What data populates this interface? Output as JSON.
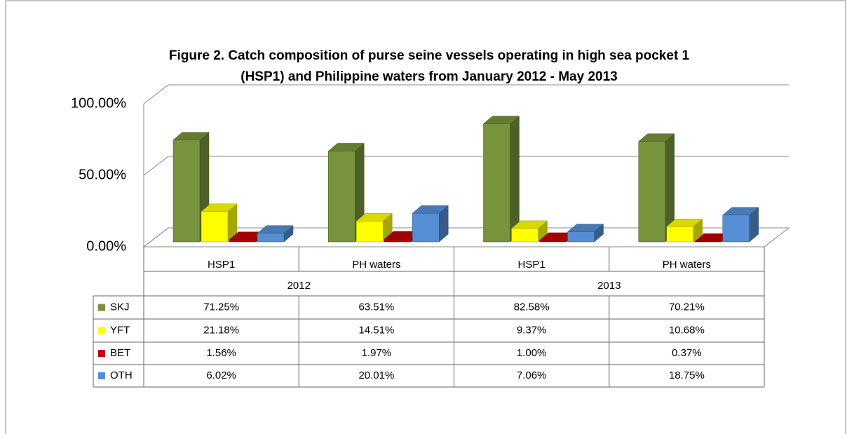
{
  "chart_data": {
    "type": "bar3d",
    "title": [
      "Figure 2. Catch composition of purse seine vessels operating in high sea pocket 1",
      "(HSP1) and Philippine waters from January 2012 - May 2013"
    ],
    "categories": [
      "HSP1",
      "PH waters",
      "HSP1",
      "PH waters"
    ],
    "category_groups": [
      "2012",
      "2013"
    ],
    "ylim": [
      0,
      100
    ],
    "yticks": [
      {
        "value": 0,
        "label": "0.00%"
      },
      {
        "value": 50,
        "label": "50.00%"
      },
      {
        "value": 100,
        "label": "100.00%"
      }
    ],
    "grid": true,
    "series": [
      {
        "name": "SKJ",
        "color": "#77933c",
        "values": [
          71.25,
          63.51,
          82.58,
          70.21
        ],
        "value_labels": [
          "71.25%",
          "63.51%",
          "82.58%",
          "70.21%"
        ]
      },
      {
        "name": "YFT",
        "color": "#ffff00",
        "values": [
          21.18,
          14.51,
          9.37,
          10.68
        ],
        "value_labels": [
          "21.18%",
          "14.51%",
          "9.37%",
          "10.68%"
        ]
      },
      {
        "name": "BET",
        "color": "#c00000",
        "values": [
          1.56,
          1.97,
          1.0,
          0.37
        ],
        "value_labels": [
          "1.56%",
          "1.97%",
          "1.00%",
          "0.37%"
        ]
      },
      {
        "name": "OTH",
        "color": "#558ed5",
        "values": [
          6.02,
          20.01,
          7.06,
          18.75
        ],
        "value_labels": [
          "6.02%",
          "20.01%",
          "7.06%",
          "18.75%"
        ]
      }
    ]
  }
}
